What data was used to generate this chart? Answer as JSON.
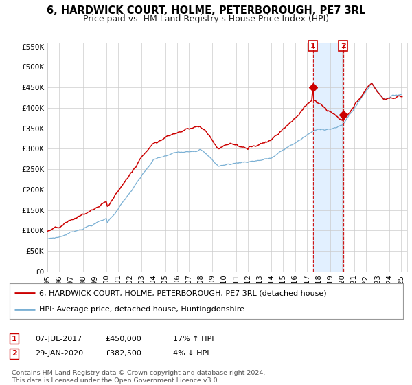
{
  "title": "6, HARDWICK COURT, HOLME, PETERBOROUGH, PE7 3RL",
  "subtitle": "Price paid vs. HM Land Registry's House Price Index (HPI)",
  "ylim": [
    0,
    560000
  ],
  "yticks": [
    0,
    50000,
    100000,
    150000,
    200000,
    250000,
    300000,
    350000,
    400000,
    450000,
    500000,
    550000
  ],
  "ytick_labels": [
    "£0",
    "£50K",
    "£100K",
    "£150K",
    "£200K",
    "£250K",
    "£300K",
    "£350K",
    "£400K",
    "£450K",
    "£500K",
    "£550K"
  ],
  "sale1_date": 2017.52,
  "sale1_price": 450000,
  "sale1_label": "07-JUL-2017",
  "sale1_price_str": "£450,000",
  "sale1_hpi_str": "17% ↑ HPI",
  "sale2_date": 2020.08,
  "sale2_price": 382500,
  "sale2_label": "29-JAN-2020",
  "sale2_price_str": "£382,500",
  "sale2_hpi_str": "4% ↓ HPI",
  "legend_line1": "6, HARDWICK COURT, HOLME, PETERBOROUGH, PE7 3RL (detached house)",
  "legend_line2": "HPI: Average price, detached house, Huntingdonshire",
  "footer": "Contains HM Land Registry data © Crown copyright and database right 2024.\nThis data is licensed under the Open Government Licence v3.0.",
  "line_color_red": "#cc0000",
  "line_color_blue": "#7ab0d4",
  "background_color": "#ffffff",
  "grid_color": "#cccccc",
  "shading_color": "#ddeeff",
  "marker_color": "#cc0000",
  "dashed_color": "#cc0000",
  "box_color": "#cc0000",
  "title_fontsize": 10.5,
  "subtitle_fontsize": 9,
  "tick_fontsize": 7.5,
  "legend_fontsize": 8,
  "table_fontsize": 8,
  "footer_fontsize": 6.8
}
